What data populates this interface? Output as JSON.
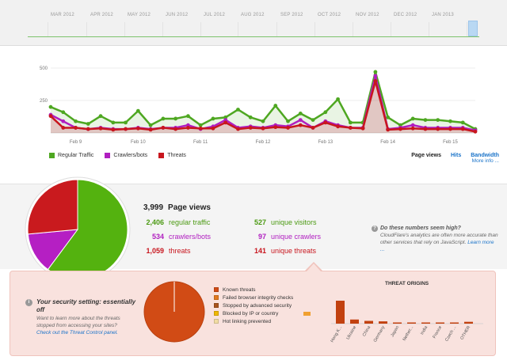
{
  "timeline": {
    "months": [
      "MAR 2012",
      "APR 2012",
      "MAY 2012",
      "JUN 2012",
      "JUL 2012",
      "AUG 2012",
      "SEP 2012",
      "OCT 2012",
      "NOV 2012",
      "DEC 2012",
      "JAN 2013"
    ]
  },
  "chart_data": {
    "type": "line",
    "y_ticks": [
      "500",
      "250"
    ],
    "ylim": [
      0,
      500
    ],
    "x_tick_labels": [
      "Feb 9",
      "Feb 10",
      "Feb 11",
      "Feb 12",
      "Feb 13",
      "Feb 14",
      "Feb 15"
    ],
    "series": [
      {
        "name": "Regular Traffic",
        "color": "#4ea721",
        "values": [
          200,
          160,
          90,
          70,
          130,
          80,
          80,
          170,
          60,
          110,
          110,
          130,
          60,
          110,
          120,
          180,
          120,
          90,
          210,
          90,
          150,
          100,
          160,
          260,
          80,
          80,
          470,
          120,
          60,
          110,
          100,
          100,
          90,
          80,
          30
        ]
      },
      {
        "name": "Crawlers/bots",
        "color": "#b01ec0",
        "values": [
          140,
          90,
          40,
          30,
          40,
          30,
          30,
          40,
          30,
          40,
          40,
          60,
          30,
          50,
          100,
          40,
          50,
          40,
          60,
          50,
          100,
          40,
          90,
          60,
          40,
          40,
          440,
          30,
          40,
          60,
          40,
          40,
          40,
          40,
          20
        ]
      },
      {
        "name": "Threats",
        "color": "#c8161e",
        "values": [
          130,
          40,
          40,
          30,
          35,
          25,
          30,
          35,
          25,
          40,
          30,
          40,
          35,
          35,
          80,
          30,
          40,
          35,
          45,
          40,
          60,
          40,
          80,
          50,
          40,
          35,
          400,
          25,
          30,
          35,
          30,
          30,
          30,
          30,
          10
        ]
      }
    ]
  },
  "legend": {
    "regular": "Regular Traffic",
    "crawlers": "Crawlers/bots",
    "threats": "Threats"
  },
  "metrics": {
    "page_views": "Page views",
    "hits": "Hits",
    "bandwidth": "Bandwidth",
    "more_info": "More info ..."
  },
  "stats": {
    "page_views_total": "3,999",
    "page_views_label": "Page views",
    "regular_num": "2,406",
    "regular_label": "regular traffic",
    "crawlers_num": "534",
    "crawlers_label": "crawlers/bots",
    "threats_num": "1,059",
    "threats_label": "threats",
    "uv_num": "527",
    "uv_label": "unique visitors",
    "uc_num": "97",
    "uc_label": "unique crawlers",
    "ut_num": "141",
    "ut_label": "unique threats",
    "pie_fractions": {
      "regular": 0.6017,
      "crawlers": 0.1335,
      "threats": 0.2648
    }
  },
  "question": {
    "title": "Do these numbers seem high?",
    "body": "CloudFlare's analytics are often more accurate than other services that rely on JavaScript.",
    "link": "Learn more ..."
  },
  "security": {
    "title": "Your security setting: essentially off",
    "body": "Want to learn more about the threats stopped from accessing your sites?",
    "link": "Check out the Threat Control panel."
  },
  "threat_types": [
    {
      "label": "Known threats",
      "color": "#d14b15"
    },
    {
      "label": "Failed browser integrity checks",
      "color": "#e27a1f"
    },
    {
      "label": "Stopped by advanced security",
      "color": "#a9541e"
    },
    {
      "label": "Blocked by IP or country",
      "color": "#f0b800"
    },
    {
      "label": "Hot linking prevented",
      "color": "#f1dca4"
    }
  ],
  "threat_origins": {
    "title": "THREAT ORIGINS",
    "countries": [
      "Hong K...",
      "Ukraine",
      "China",
      "Germany",
      "Japan",
      "Nether...",
      "India",
      "France",
      "Czech ...",
      "OTHER"
    ],
    "values": [
      100,
      18,
      12,
      10,
      3,
      3,
      3,
      3,
      3,
      8
    ]
  }
}
